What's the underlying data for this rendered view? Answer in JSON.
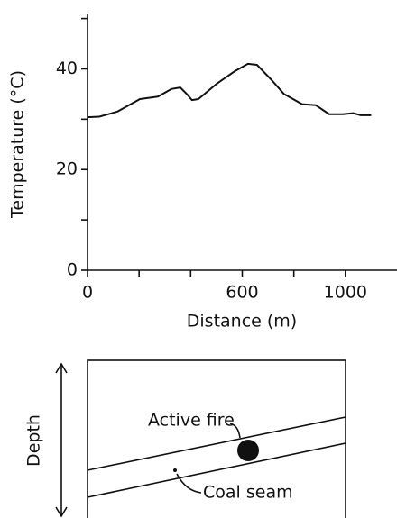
{
  "chart_data": {
    "type": "line",
    "x_label": "Distance (m)",
    "y_label": "Temperature (°C)",
    "x": [
      0,
      45,
      115,
      203,
      273,
      325,
      360,
      385,
      405,
      430,
      500,
      570,
      622,
      657,
      710,
      762,
      832,
      885,
      937,
      990,
      1030,
      1060,
      1100
    ],
    "series": [
      {
        "color": "#111111",
        "values": [
          30.4,
          30.5,
          31.5,
          34,
          34.5,
          36,
          36.3,
          35,
          33.8,
          34,
          37,
          39.5,
          41,
          40.8,
          38,
          35,
          33,
          32.8,
          31,
          31,
          31.2,
          30.8,
          30.8
        ]
      }
    ],
    "xlim": [
      0,
      1200
    ],
    "ylim": [
      0,
      51
    ],
    "xticks": [
      0,
      600,
      1000
    ],
    "xminorticks": [
      200,
      400,
      800
    ],
    "yticks": [
      0,
      20,
      40
    ],
    "yminorticks": [
      10,
      30,
      50
    ]
  },
  "diagram": {
    "depth_label": "Depth",
    "fire_label": "Active fire",
    "seam_label": "Coal seam"
  }
}
